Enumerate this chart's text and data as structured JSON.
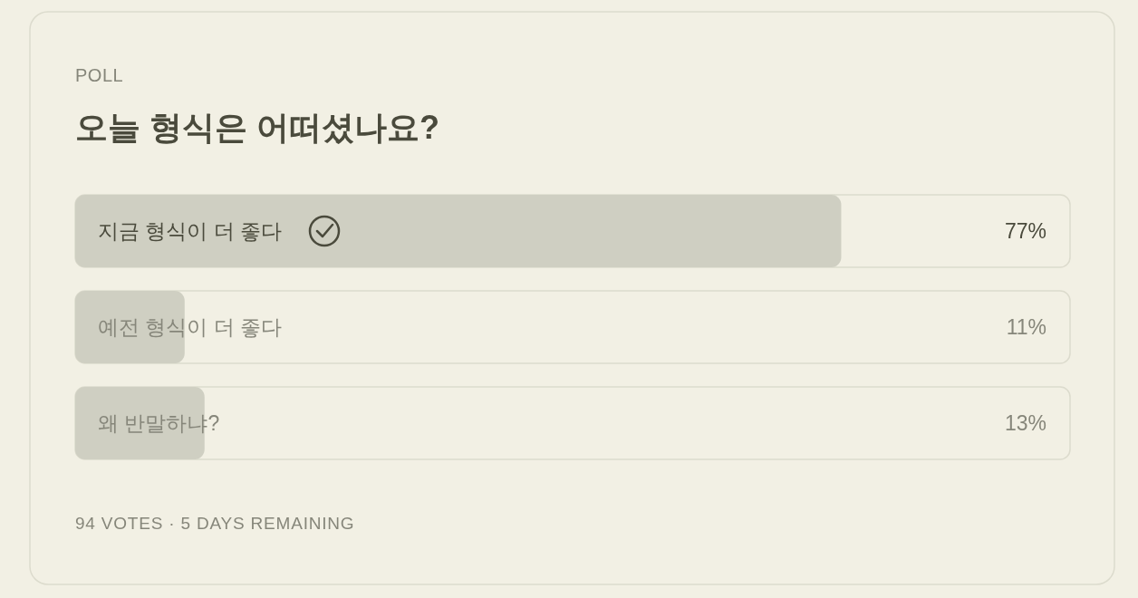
{
  "chart_data": {
    "type": "bar",
    "orientation": "horizontal",
    "subtitle": "POLL",
    "title": "오늘 형식은 어떠셨나요?",
    "categories": [
      "지금 형식이 더 좋다",
      "예전 형식이 더 좋다",
      "왜 반말하냐?"
    ],
    "values": [
      77,
      11,
      13
    ],
    "value_labels": [
      "77%",
      "11%",
      "13%"
    ],
    "color": "#cfcfc2",
    "xlim": [
      0,
      100
    ],
    "tick_labels": false,
    "annotations": [
      "94 VOTES · 5 DAYS REMAINING"
    ]
  }
}
